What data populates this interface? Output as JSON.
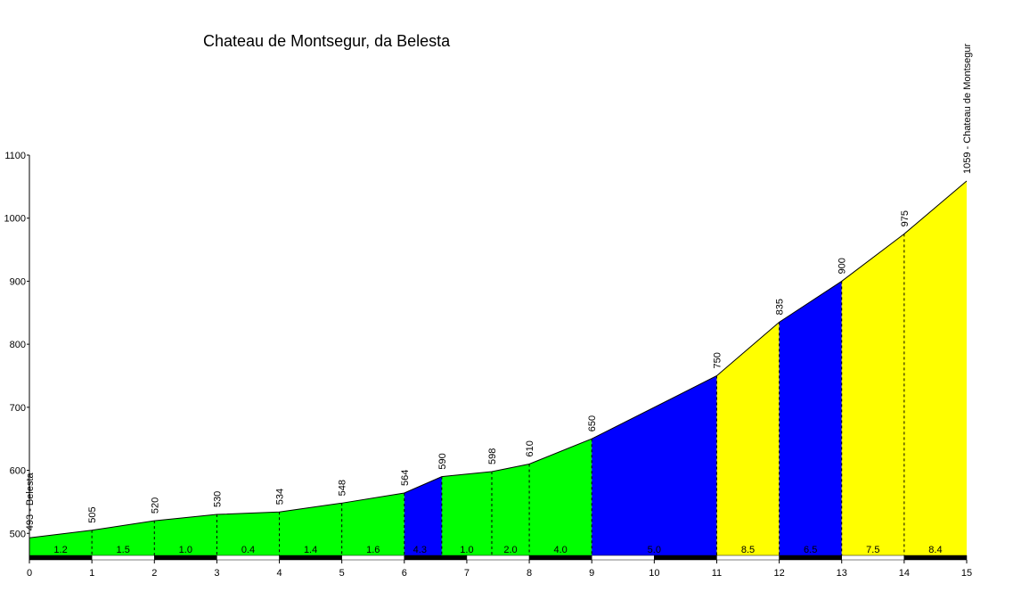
{
  "chart_data": {
    "type": "area",
    "title": "Chateau de Montsegur, da Belesta",
    "xlabel": "",
    "ylabel": "",
    "xlim": [
      0,
      15
    ],
    "ylim": [
      465,
      1100
    ],
    "x_ticks": [
      0,
      1,
      2,
      3,
      4,
      5,
      6,
      7,
      8,
      9,
      10,
      11,
      12,
      13,
      14,
      15
    ],
    "y_ticks": [
      500,
      600,
      700,
      800,
      900,
      1000,
      1100
    ],
    "points": [
      {
        "x": 0,
        "y": 493,
        "label": "493 - Belesta"
      },
      {
        "x": 1,
        "y": 505,
        "label": "505"
      },
      {
        "x": 2,
        "y": 520,
        "label": "520"
      },
      {
        "x": 3,
        "y": 530,
        "label": "530"
      },
      {
        "x": 4,
        "y": 534,
        "label": "534"
      },
      {
        "x": 5,
        "y": 548,
        "label": "548"
      },
      {
        "x": 6,
        "y": 564,
        "label": "564"
      },
      {
        "x": 6.6,
        "y": 590,
        "label": "590"
      },
      {
        "x": 7.4,
        "y": 598,
        "label": "598"
      },
      {
        "x": 8,
        "y": 610,
        "label": "610"
      },
      {
        "x": 9,
        "y": 650,
        "label": "650"
      },
      {
        "x": 11,
        "y": 750,
        "label": "750"
      },
      {
        "x": 12,
        "y": 835,
        "label": "835"
      },
      {
        "x": 13,
        "y": 900,
        "label": "900"
      },
      {
        "x": 14,
        "y": 975,
        "label": "975"
      },
      {
        "x": 15,
        "y": 1059,
        "label": "1059 - Chateau de Montsegur"
      }
    ],
    "segments": [
      {
        "from": 0,
        "to": 6,
        "color": "#00ff00"
      },
      {
        "from": 6,
        "to": 6.6,
        "color": "#0000ff"
      },
      {
        "from": 6.6,
        "to": 9,
        "color": "#00ff00"
      },
      {
        "from": 9,
        "to": 11,
        "color": "#0000ff"
      },
      {
        "from": 11,
        "to": 12,
        "color": "#ffff00"
      },
      {
        "from": 12,
        "to": 13,
        "color": "#0000ff"
      },
      {
        "from": 13,
        "to": 15,
        "color": "#ffff00"
      }
    ],
    "gradients": [
      {
        "x": 0.5,
        "label": "1.2"
      },
      {
        "x": 1.5,
        "label": "1.5"
      },
      {
        "x": 2.5,
        "label": "1.0"
      },
      {
        "x": 3.5,
        "label": "0.4"
      },
      {
        "x": 4.5,
        "label": "1.4"
      },
      {
        "x": 5.5,
        "label": "1.6"
      },
      {
        "x": 6.25,
        "label": "4.3"
      },
      {
        "x": 7.0,
        "label": "1.0"
      },
      {
        "x": 7.7,
        "label": "2.0"
      },
      {
        "x": 8.5,
        "label": "4.0"
      },
      {
        "x": 10,
        "label": "5.0"
      },
      {
        "x": 11.5,
        "label": "8.5"
      },
      {
        "x": 12.5,
        "label": "6.5"
      },
      {
        "x": 13.5,
        "label": "7.5"
      },
      {
        "x": 14.5,
        "label": "8.4"
      }
    ],
    "grid": false,
    "legend": "none"
  }
}
